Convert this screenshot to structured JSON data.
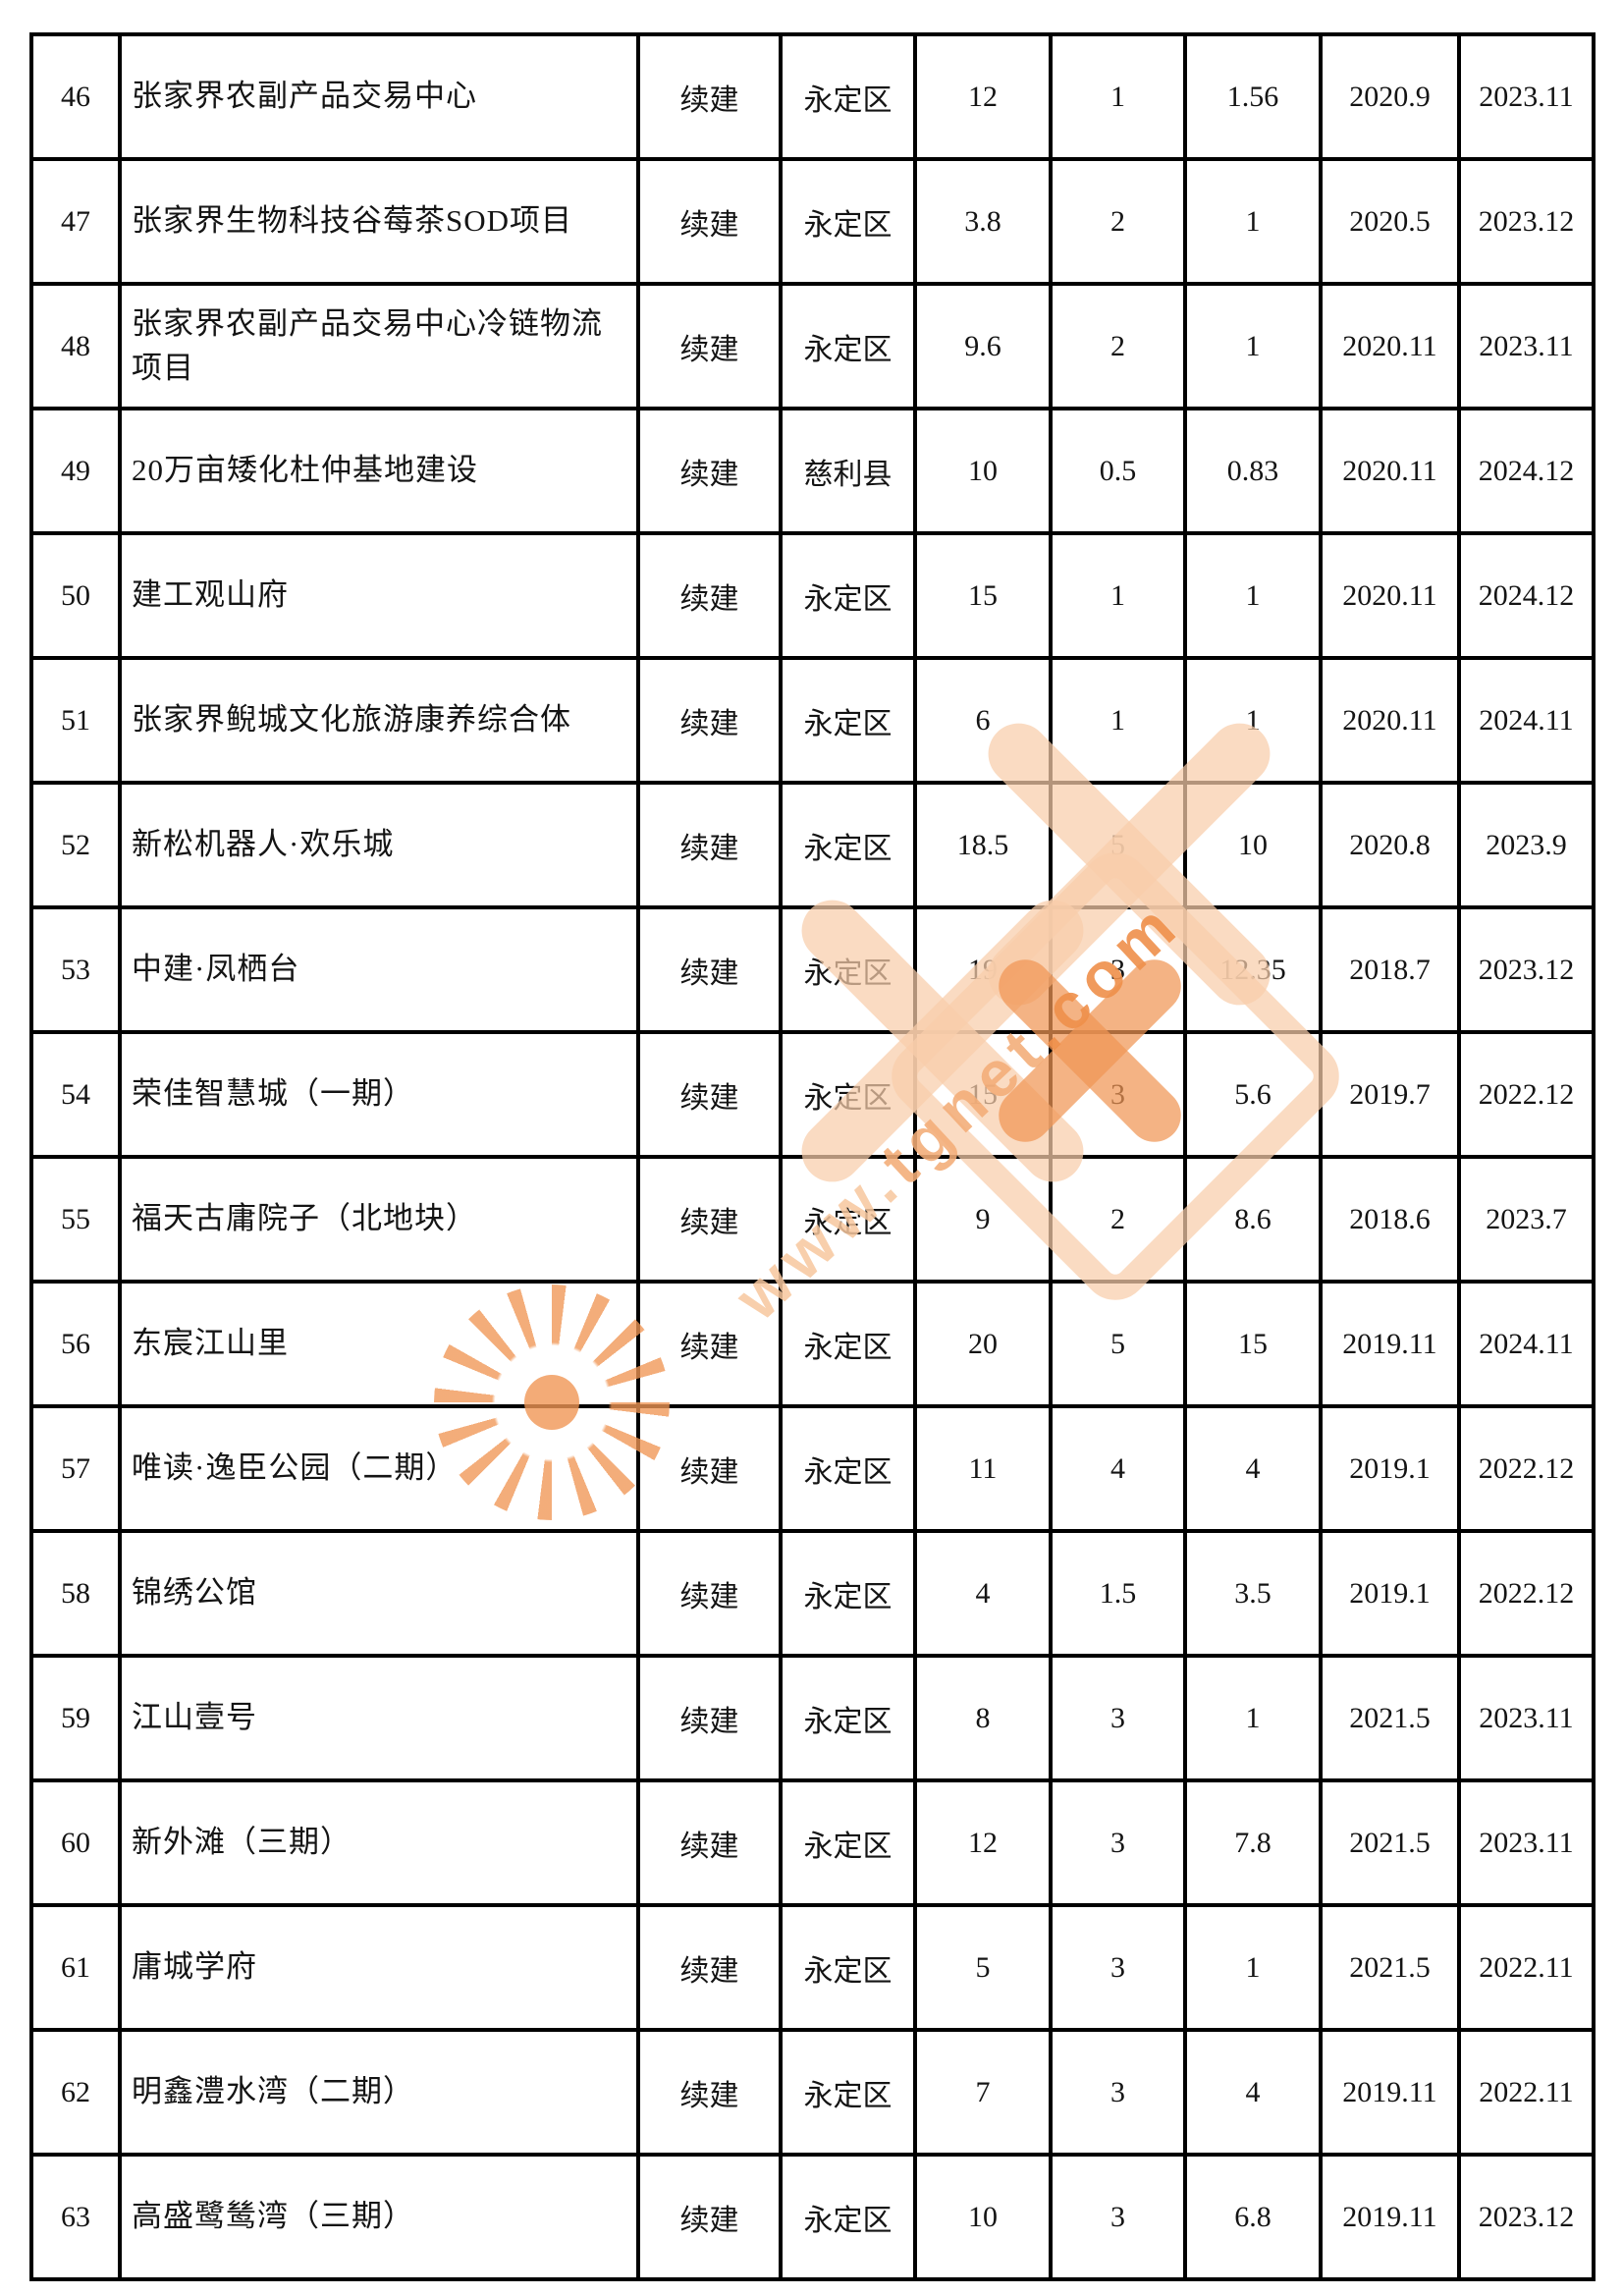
{
  "table": {
    "rows": [
      [
        "46",
        "张家界农副产品交易中心",
        "续建",
        "永定区",
        "12",
        "1",
        "1.56",
        "2020.9",
        "2023.11"
      ],
      [
        "47",
        "张家界生物科技谷莓茶SOD项目",
        "续建",
        "永定区",
        "3.8",
        "2",
        "1",
        "2020.5",
        "2023.12"
      ],
      [
        "48",
        "张家界农副产品交易中心冷链物流项目",
        "续建",
        "永定区",
        "9.6",
        "2",
        "1",
        "2020.11",
        "2023.11"
      ],
      [
        "49",
        "20万亩矮化杜仲基地建设",
        "续建",
        "慈利县",
        "10",
        "0.5",
        "0.83",
        "2020.11",
        "2024.12"
      ],
      [
        "50",
        "建工观山府",
        "续建",
        "永定区",
        "15",
        "1",
        "1",
        "2020.11",
        "2024.12"
      ],
      [
        "51",
        "张家界鲵城文化旅游康养综合体",
        "续建",
        "永定区",
        "6",
        "1",
        "1",
        "2020.11",
        "2024.11"
      ],
      [
        "52",
        "新松机器人·欢乐城",
        "续建",
        "永定区",
        "18.5",
        "5",
        "10",
        "2020.8",
        "2023.9"
      ],
      [
        "53",
        "中建·凤栖台",
        "续建",
        "永定区",
        "19",
        "3",
        "12.35",
        "2018.7",
        "2023.12"
      ],
      [
        "54",
        "荣佳智慧城（一期）",
        "续建",
        "永定区",
        "15",
        "3",
        "5.6",
        "2019.7",
        "2022.12"
      ],
      [
        "55",
        "福天古庸院子（北地块）",
        "续建",
        "永定区",
        "9",
        "2",
        "8.6",
        "2018.6",
        "2023.7"
      ],
      [
        "56",
        "东宸江山里",
        "续建",
        "永定区",
        "20",
        "5",
        "15",
        "2019.11",
        "2024.11"
      ],
      [
        "57",
        "唯读·逸臣公园（二期）",
        "续建",
        "永定区",
        "11",
        "4",
        "4",
        "2019.1",
        "2022.12"
      ],
      [
        "58",
        "锦绣公馆",
        "续建",
        "永定区",
        "4",
        "1.5",
        "3.5",
        "2019.1",
        "2022.12"
      ],
      [
        "59",
        "江山壹号",
        "续建",
        "永定区",
        "8",
        "3",
        "1",
        "2021.5",
        "2023.11"
      ],
      [
        "60",
        "新外滩（三期）",
        "续建",
        "永定区",
        "12",
        "3",
        "7.8",
        "2021.5",
        "2023.11"
      ],
      [
        "61",
        "庸城学府",
        "续建",
        "永定区",
        "5",
        "3",
        "1",
        "2021.5",
        "2022.11"
      ],
      [
        "62",
        "明鑫澧水湾（二期）",
        "续建",
        "永定区",
        "7",
        "3",
        "4",
        "2019.11",
        "2022.11"
      ],
      [
        "63",
        "高盛鹭鸶湾（三期）",
        "续建",
        "永定区",
        "10",
        "3",
        "6.8",
        "2019.11",
        "2023.12"
      ]
    ]
  },
  "watermark": {
    "url_www": "www.",
    "url_tgnet": "tgnet",
    "url_com": ".com",
    "light_color": "#f8cdaa",
    "deep_color": "#f09655"
  }
}
